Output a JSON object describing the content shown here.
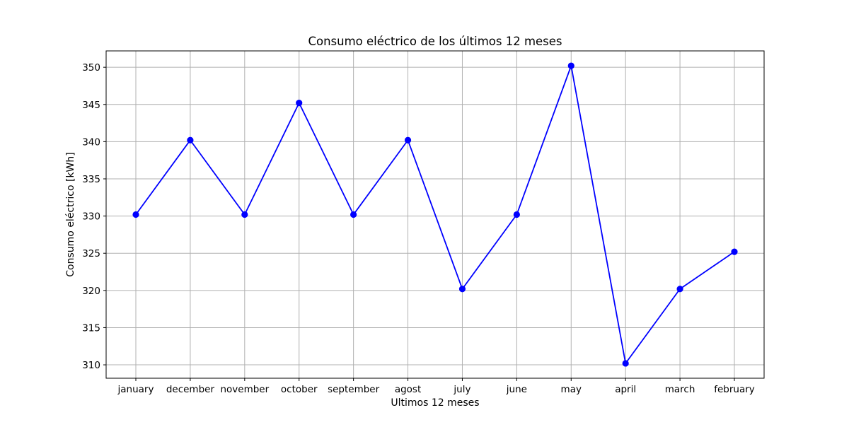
{
  "chart_data": {
    "type": "line",
    "title": "Consumo eléctrico de los últimos 12 meses",
    "xlabel": "Ultimos 12 meses",
    "ylabel": "Consumo eléctrico [kWh]",
    "categories": [
      "january",
      "december",
      "november",
      "october",
      "september",
      "agost",
      "july",
      "june",
      "may",
      "april",
      "march",
      "february"
    ],
    "series": [
      {
        "values": [
          330.2,
          340.2,
          330.2,
          345.2,
          330.2,
          340.2,
          320.2,
          330.2,
          350.2,
          310.2,
          320.2,
          325.2
        ],
        "color": "#0000ff",
        "marker": "circle"
      }
    ],
    "ylim": [
      308.2,
      352.2
    ],
    "yticks": [
      310,
      315,
      320,
      325,
      330,
      335,
      340,
      345,
      350
    ],
    "ytick_labels": [
      "310",
      "315",
      "320",
      "325",
      "330",
      "335",
      "340",
      "345",
      "350"
    ],
    "grid": true
  }
}
